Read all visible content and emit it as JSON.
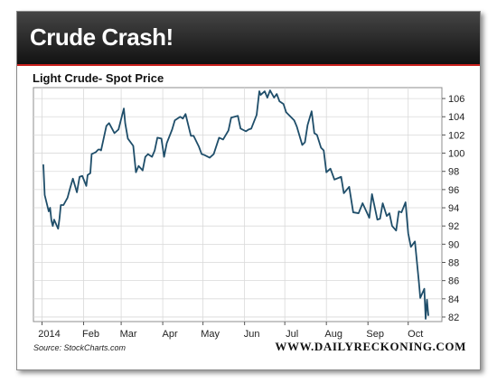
{
  "banner": {
    "title": "Crude Crash!"
  },
  "footer": {
    "source": "Source: StockCharts.com",
    "brand": "WWW.DAILYRECKONING.COM"
  },
  "colors": {
    "line": "#1f4e6a",
    "banner_top": "#454545",
    "banner_bottom": "#121212",
    "accent": "#c9201c",
    "grid": "#d9d9d9"
  },
  "chart_data": {
    "type": "line",
    "title": "Light Crude- Spot Price",
    "xlabel": "",
    "ylabel": "",
    "ylim": [
      81.5,
      107.2
    ],
    "yticks": [
      82,
      84,
      86,
      88,
      90,
      92,
      94,
      96,
      98,
      100,
      102,
      104,
      106
    ],
    "xlim": [
      "2014-01-02",
      "2014-10-16"
    ],
    "xticks": [
      {
        "label": "2014",
        "date": "2014-01-01"
      },
      {
        "label": "Feb",
        "date": "2014-02-01"
      },
      {
        "label": "Mar",
        "date": "2014-03-01"
      },
      {
        "label": "Apr",
        "date": "2014-04-01"
      },
      {
        "label": "May",
        "date": "2014-05-01"
      },
      {
        "label": "Jun",
        "date": "2014-06-01"
      },
      {
        "label": "Jul",
        "date": "2014-07-01"
      },
      {
        "label": "Aug",
        "date": "2014-08-01"
      },
      {
        "label": "Sep",
        "date": "2014-09-01"
      },
      {
        "label": "Oct",
        "date": "2014-10-01"
      }
    ],
    "grid": true,
    "legend": "none",
    "y_axis_side": "right",
    "series": [
      {
        "x": [
          "2014-01-02",
          "2014-01-03",
          "2014-01-06",
          "2014-01-07",
          "2014-01-08",
          "2014-01-09",
          "2014-01-10",
          "2014-01-13",
          "2014-01-14",
          "2014-01-15",
          "2014-01-17",
          "2014-01-20",
          "2014-01-22",
          "2014-01-24",
          "2014-01-27",
          "2014-01-29",
          "2014-01-31",
          "2014-02-03",
          "2014-02-04",
          "2014-02-06",
          "2014-02-07",
          "2014-02-10",
          "2014-02-12",
          "2014-02-13",
          "2014-02-14",
          "2014-02-18",
          "2014-02-20",
          "2014-02-24",
          "2014-02-27",
          "2014-03-03",
          "2014-03-04",
          "2014-03-06",
          "2014-03-10",
          "2014-03-12",
          "2014-03-14",
          "2014-03-17",
          "2014-03-19",
          "2014-03-21",
          "2014-03-24",
          "2014-03-26",
          "2014-03-28",
          "2014-03-31",
          "2014-04-02",
          "2014-04-04",
          "2014-04-08",
          "2014-04-10",
          "2014-04-14",
          "2014-04-16",
          "2014-04-18",
          "2014-04-22",
          "2014-04-24",
          "2014-04-28",
          "2014-04-30",
          "2014-05-02",
          "2014-05-06",
          "2014-05-09",
          "2014-05-13",
          "2014-05-16",
          "2014-05-20",
          "2014-05-22",
          "2014-05-27",
          "2014-05-29",
          "2014-06-02",
          "2014-06-04",
          "2014-06-06",
          "2014-06-10",
          "2014-06-12",
          "2014-06-13",
          "2014-06-16",
          "2014-06-18",
          "2014-06-20",
          "2014-06-23",
          "2014-06-25",
          "2014-06-27",
          "2014-06-30",
          "2014-07-02",
          "2014-07-08",
          "2014-07-10",
          "2014-07-14",
          "2014-07-16",
          "2014-07-18",
          "2014-07-21",
          "2014-07-23",
          "2014-07-25",
          "2014-07-28",
          "2014-07-30",
          "2014-08-01",
          "2014-08-04",
          "2014-08-07",
          "2014-08-12",
          "2014-08-14",
          "2014-08-18",
          "2014-08-21",
          "2014-08-25",
          "2014-08-28",
          "2014-09-02",
          "2014-09-04",
          "2014-09-08",
          "2014-09-10",
          "2014-09-12",
          "2014-09-15",
          "2014-09-17",
          "2014-09-19",
          "2014-09-22",
          "2014-09-24",
          "2014-09-26",
          "2014-09-29",
          "2014-10-01",
          "2014-10-03",
          "2014-10-06",
          "2014-10-08",
          "2014-10-09",
          "2014-10-10",
          "2014-10-13",
          "2014-10-14",
          "2014-10-15",
          "2014-10-16"
        ],
        "y": [
          98.7,
          95.4,
          93.6,
          94.0,
          92.6,
          92.0,
          92.7,
          91.7,
          92.8,
          94.3,
          94.3,
          95.1,
          96.2,
          97.2,
          95.7,
          97.4,
          97.5,
          96.4,
          97.6,
          97.8,
          99.9,
          100.1,
          100.4,
          100.4,
          100.3,
          103.0,
          103.3,
          102.2,
          102.6,
          104.9,
          103.3,
          101.6,
          100.8,
          97.9,
          98.6,
          98.1,
          99.6,
          99.9,
          99.6,
          100.3,
          101.7,
          101.6,
          99.6,
          101.1,
          102.6,
          103.6,
          104.0,
          103.8,
          104.3,
          101.9,
          101.9,
          100.7,
          99.9,
          99.8,
          99.5,
          99.9,
          101.7,
          101.5,
          102.5,
          103.9,
          104.1,
          102.7,
          102.4,
          102.6,
          102.7,
          104.2,
          106.8,
          106.4,
          106.8,
          106.1,
          106.9,
          106.1,
          106.5,
          105.7,
          105.4,
          104.5,
          103.6,
          102.9,
          100.9,
          101.2,
          103.1,
          104.6,
          102.2,
          102.0,
          100.6,
          100.3,
          97.9,
          98.3,
          97.1,
          97.4,
          95.6,
          96.3,
          93.5,
          93.4,
          94.5,
          92.9,
          95.5,
          92.7,
          92.8,
          94.5,
          93.1,
          93.4,
          92.0,
          91.5,
          93.6,
          93.5,
          94.6,
          91.2,
          89.7,
          90.3,
          87.3,
          85.8,
          84.1,
          85.1,
          81.8,
          83.9,
          82.2
        ]
      }
    ]
  }
}
